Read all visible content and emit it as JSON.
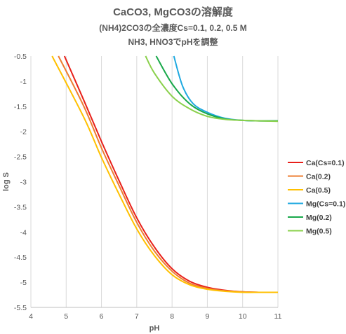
{
  "chart_data": {
    "type": "line",
    "title": "CaCO3, MgCO3の溶解度",
    "subtitle": "(NH4)2CO3の全濃度Cs=0.1, 0.2, 0.5 M",
    "subtitle2": "NH3, HNO3でpHを調整",
    "xlabel": "pH",
    "ylabel": "log S",
    "xlim": [
      4,
      11
    ],
    "ylim": [
      -5.5,
      -0.5
    ],
    "xticks": [
      "4",
      "5",
      "6",
      "7",
      "8",
      "9",
      "10",
      "11"
    ],
    "yticks": [
      "-0.5",
      "-1",
      "-1.5",
      "-2",
      "-2.5",
      "-3",
      "-3.5",
      "-4",
      "-4.5",
      "-5",
      "-5.5"
    ],
    "grid": "vertical",
    "legend_position": "right",
    "series": [
      {
        "name": "Ca(Cs=0.1)",
        "color": "#e8201a",
        "x": [
          4.95,
          5.5,
          6.0,
          6.5,
          7.0,
          7.5,
          8.0,
          8.5,
          9.0,
          9.5,
          10.0,
          10.5,
          11.0
        ],
        "y": [
          -0.5,
          -1.38,
          -2.2,
          -2.98,
          -3.72,
          -4.3,
          -4.73,
          -4.98,
          -5.1,
          -5.16,
          -5.19,
          -5.2,
          -5.2
        ]
      },
      {
        "name": "Ca(0.2)",
        "color": "#ed7d31",
        "x": [
          4.78,
          5.5,
          6.0,
          6.5,
          7.0,
          7.5,
          8.0,
          8.5,
          9.0,
          9.5,
          10.0,
          10.5,
          11.0
        ],
        "y": [
          -0.5,
          -1.5,
          -2.33,
          -3.08,
          -3.81,
          -4.38,
          -4.78,
          -5.02,
          -5.12,
          -5.17,
          -5.19,
          -5.2,
          -5.2
        ]
      },
      {
        "name": "Ca(0.5)",
        "color": "#ffc000",
        "x": [
          4.6,
          5.5,
          6.0,
          6.5,
          7.0,
          7.5,
          8.0,
          8.5,
          9.0,
          9.5,
          10.0,
          10.5,
          11.0
        ],
        "y": [
          -0.5,
          -1.72,
          -2.52,
          -3.25,
          -3.94,
          -4.47,
          -4.85,
          -5.05,
          -5.14,
          -5.18,
          -5.2,
          -5.2,
          -5.2
        ]
      },
      {
        "name": "Mg(Cs=0.1)",
        "color": "#1fa9e0",
        "x": [
          8.05,
          8.3,
          8.6,
          9.0,
          9.5,
          10.0,
          10.5,
          11.0
        ],
        "y": [
          -0.5,
          -1.1,
          -1.45,
          -1.62,
          -1.74,
          -1.78,
          -1.79,
          -1.79
        ]
      },
      {
        "name": "Mg(0.2)",
        "color": "#18a84a",
        "x": [
          7.55,
          8.0,
          8.5,
          9.0,
          9.5,
          10.0,
          10.5,
          11.0
        ],
        "y": [
          -0.5,
          -1.05,
          -1.45,
          -1.65,
          -1.75,
          -1.78,
          -1.79,
          -1.79
        ]
      },
      {
        "name": "Mg(0.5)",
        "color": "#8ad04b",
        "x": [
          7.25,
          7.5,
          8.0,
          8.5,
          9.0,
          9.5,
          10.0,
          10.5,
          11.0
        ],
        "y": [
          -0.5,
          -0.84,
          -1.3,
          -1.55,
          -1.7,
          -1.76,
          -1.78,
          -1.79,
          -1.8
        ]
      }
    ]
  }
}
